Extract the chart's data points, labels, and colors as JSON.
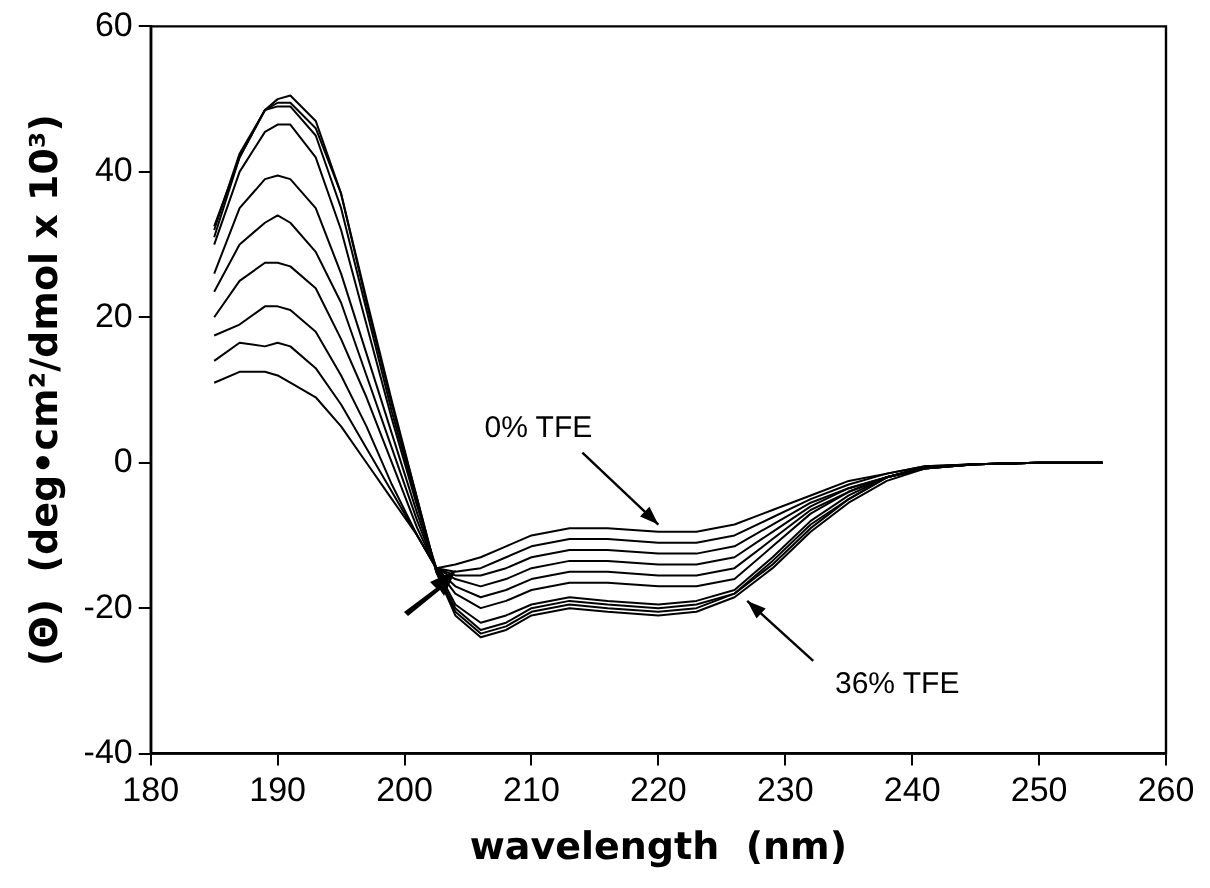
{
  "chart_data": {
    "type": "line",
    "xlabel": "wavelength  (nm)",
    "ylabel": "(Θ)  (deg•cm²/dmol x 10³)",
    "x": [
      185,
      187,
      189,
      190,
      191,
      193,
      195,
      197,
      199,
      201,
      202.5,
      204,
      206,
      208,
      210,
      213,
      216,
      220,
      223,
      226,
      229,
      232,
      235,
      238,
      241,
      245,
      250,
      255
    ],
    "series": [
      {
        "color": "#000000",
        "values": [
          11,
          12.5,
          12.5,
          12,
          11,
          9,
          5,
          0,
          -5,
          -10,
          -14.5,
          -14,
          -13,
          -11.5,
          -10,
          -9,
          -9,
          -9.5,
          -9.5,
          -8.5,
          -6.5,
          -4.5,
          -2.5,
          -1.5,
          -0.5,
          -0.2,
          0,
          0
        ]
      },
      {
        "color": "#000000",
        "values": [
          14,
          16.5,
          16,
          16.5,
          16,
          13,
          8,
          2,
          -4,
          -10,
          -14.5,
          -15,
          -14.5,
          -13,
          -11.5,
          -10.5,
          -10.5,
          -11,
          -11,
          -10,
          -7.5,
          -5,
          -3,
          -1.5,
          -0.5,
          -0.2,
          0,
          0
        ]
      },
      {
        "color": "#000000",
        "values": [
          17.5,
          19,
          21.5,
          21.5,
          21,
          18,
          12,
          5,
          -3,
          -10,
          -14.5,
          -15.5,
          -15.5,
          -14.5,
          -13,
          -12,
          -12,
          -12.5,
          -12.5,
          -11.5,
          -8.5,
          -5.5,
          -3.5,
          -2,
          -0.6,
          -0.2,
          0,
          0
        ]
      },
      {
        "color": "#000000",
        "values": [
          20,
          25,
          27.5,
          27.5,
          27,
          24,
          17,
          9,
          0,
          -9,
          -14.5,
          -16,
          -17,
          -16,
          -14.5,
          -13.5,
          -13.5,
          -14,
          -14,
          -13,
          -9.5,
          -6,
          -3.5,
          -2,
          -0.6,
          -0.2,
          0,
          0
        ]
      },
      {
        "color": "#000000",
        "values": [
          23.5,
          30,
          33,
          34,
          33,
          29,
          22,
          12,
          2,
          -8,
          -14.5,
          -17,
          -18.5,
          -17.5,
          -16,
          -15,
          -15,
          -15.5,
          -15.5,
          -14.5,
          -10.5,
          -6.5,
          -4,
          -2,
          -0.7,
          -0.2,
          0,
          0
        ]
      },
      {
        "color": "#000000",
        "values": [
          26,
          35,
          39,
          39.5,
          39,
          35,
          26,
          15,
          4,
          -7,
          -14.5,
          -18,
          -20,
          -19,
          -17.5,
          -16.5,
          -16.5,
          -17,
          -17,
          -16,
          -11.5,
          -7,
          -4,
          -2,
          -0.7,
          -0.2,
          0,
          0
        ]
      },
      {
        "color": "#000000",
        "values": [
          30,
          40,
          45.5,
          46.5,
          46.5,
          42,
          32,
          19,
          6,
          -6,
          -14.5,
          -19.5,
          -22,
          -21,
          -19.5,
          -18.5,
          -19,
          -19.5,
          -19,
          -17.5,
          -13,
          -8,
          -4.5,
          -2,
          -0.8,
          -0.2,
          0,
          0
        ]
      },
      {
        "color": "#000000",
        "values": [
          31,
          42,
          48.5,
          49,
          49,
          45,
          35,
          21,
          7,
          -5.5,
          -15,
          -20,
          -23,
          -22,
          -20,
          -19,
          -19.5,
          -20,
          -19.5,
          -18,
          -13.5,
          -8.5,
          -5,
          -2,
          -0.8,
          -0.2,
          0,
          0
        ]
      },
      {
        "color": "#000000",
        "values": [
          32,
          42.5,
          48.5,
          50,
          50.5,
          47,
          37,
          22,
          8,
          -5,
          -15,
          -20.5,
          -23.5,
          -22.5,
          -20.5,
          -19.5,
          -20,
          -20.5,
          -20,
          -18,
          -14,
          -9,
          -5,
          -2,
          -0.8,
          -0.2,
          0,
          0
        ]
      },
      {
        "color": "#000000",
        "values": [
          32.5,
          42,
          48.5,
          49.5,
          49.5,
          46,
          37,
          22.5,
          8.5,
          -5,
          -15,
          -21,
          -24,
          -23,
          -21,
          -20,
          -20.5,
          -21,
          -20.5,
          -18.5,
          -14.5,
          -9.5,
          -5.5,
          -2.5,
          -0.8,
          -0.2,
          0,
          0
        ]
      }
    ],
    "xlim": [
      180,
      260
    ],
    "xticks": [
      180,
      190,
      200,
      210,
      220,
      230,
      240,
      250,
      260
    ],
    "ylim": [
      -40,
      60
    ],
    "yticks": [
      -40,
      -20,
      0,
      20,
      40,
      60
    ],
    "grid": false,
    "legend": false,
    "marker": "none",
    "line_style": "solid",
    "annotations": [
      {
        "text": "0% TFE",
        "x": 220,
        "y": -8.5
      },
      {
        "text": "36% TFE",
        "x": 227,
        "y": -19
      }
    ]
  }
}
